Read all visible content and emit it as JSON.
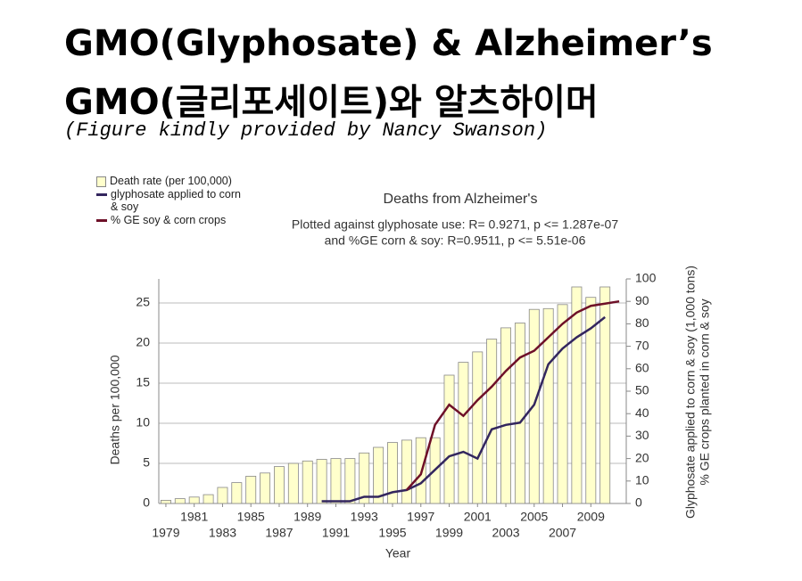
{
  "header": {
    "title_lines": [
      "GMO(Glyphosate) & Alzheimer’s",
      "GMO(글리포세이트)와 알츠하이머"
    ],
    "credit": "(Figure kindly provided by Nancy Swanson)"
  },
  "chart_data": {
    "type": "combo",
    "title": "Deaths from Alzheimer's",
    "subtitle": [
      "Plotted against glyphosate use: R= 0.9271, p <= 1.287e-07",
      "and %GE corn & soy: R=0.9511, p <= 5.51e-06"
    ],
    "x_label": "Year",
    "y_label": "Deaths per 100,000",
    "y2_labels": [
      "Glyphosate applied to corn & soy (1,000 tons)",
      "% GE crops planted in corn & soy"
    ],
    "x": [
      1979,
      1980,
      1981,
      1982,
      1983,
      1984,
      1985,
      1986,
      1987,
      1988,
      1989,
      1990,
      1991,
      1992,
      1993,
      1994,
      1995,
      1996,
      1997,
      1998,
      1999,
      2000,
      2001,
      2002,
      2003,
      2004,
      2005,
      2006,
      2007,
      2008,
      2009,
      2010,
      2011
    ],
    "xlim": [
      1978.5,
      2011.5
    ],
    "xticks": [
      1979,
      1981,
      1983,
      1985,
      1987,
      1989,
      1991,
      1993,
      1995,
      1997,
      1999,
      2001,
      2003,
      2005,
      2007,
      2009
    ],
    "ylim": [
      0,
      28
    ],
    "yticks": [
      0,
      5,
      10,
      15,
      20,
      25
    ],
    "y2lim": [
      0,
      100
    ],
    "y2ticks": [
      0,
      10,
      20,
      30,
      40,
      50,
      60,
      70,
      80,
      90,
      100
    ],
    "grid": true,
    "legend": "top-left",
    "series": [
      {
        "name": "Death rate (per 100,000)",
        "kind": "bar",
        "color": "#ffffcc",
        "values": [
          0.4,
          0.6,
          0.8,
          1.1,
          2.0,
          2.6,
          3.4,
          3.8,
          4.6,
          5.0,
          5.3,
          5.5,
          5.6,
          5.6,
          6.3,
          7.0,
          7.6,
          7.9,
          8.2,
          8.2,
          16.0,
          17.6,
          18.9,
          20.5,
          21.9,
          22.5,
          24.2,
          24.3,
          24.8,
          27.0,
          25.7,
          27.0,
          null
        ]
      },
      {
        "name": "glyphosate applied to corn & soy",
        "kind": "line",
        "axis": "y2",
        "color": "#33265e",
        "values": [
          null,
          null,
          null,
          null,
          null,
          null,
          null,
          null,
          null,
          null,
          null,
          1,
          1,
          1,
          3,
          3,
          5,
          6,
          9,
          15,
          21,
          23,
          20,
          33,
          35,
          36,
          44,
          62,
          69,
          74,
          78,
          83,
          null
        ]
      },
      {
        "name": "% GE soy & corn crops",
        "kind": "line",
        "axis": "y2",
        "color": "#6e1028",
        "values": [
          null,
          null,
          null,
          null,
          null,
          null,
          null,
          null,
          null,
          null,
          null,
          null,
          null,
          null,
          null,
          null,
          null,
          6,
          13,
          35,
          44,
          39,
          46,
          52,
          59,
          65,
          68,
          74,
          80,
          85,
          88,
          89,
          90
        ]
      }
    ]
  }
}
